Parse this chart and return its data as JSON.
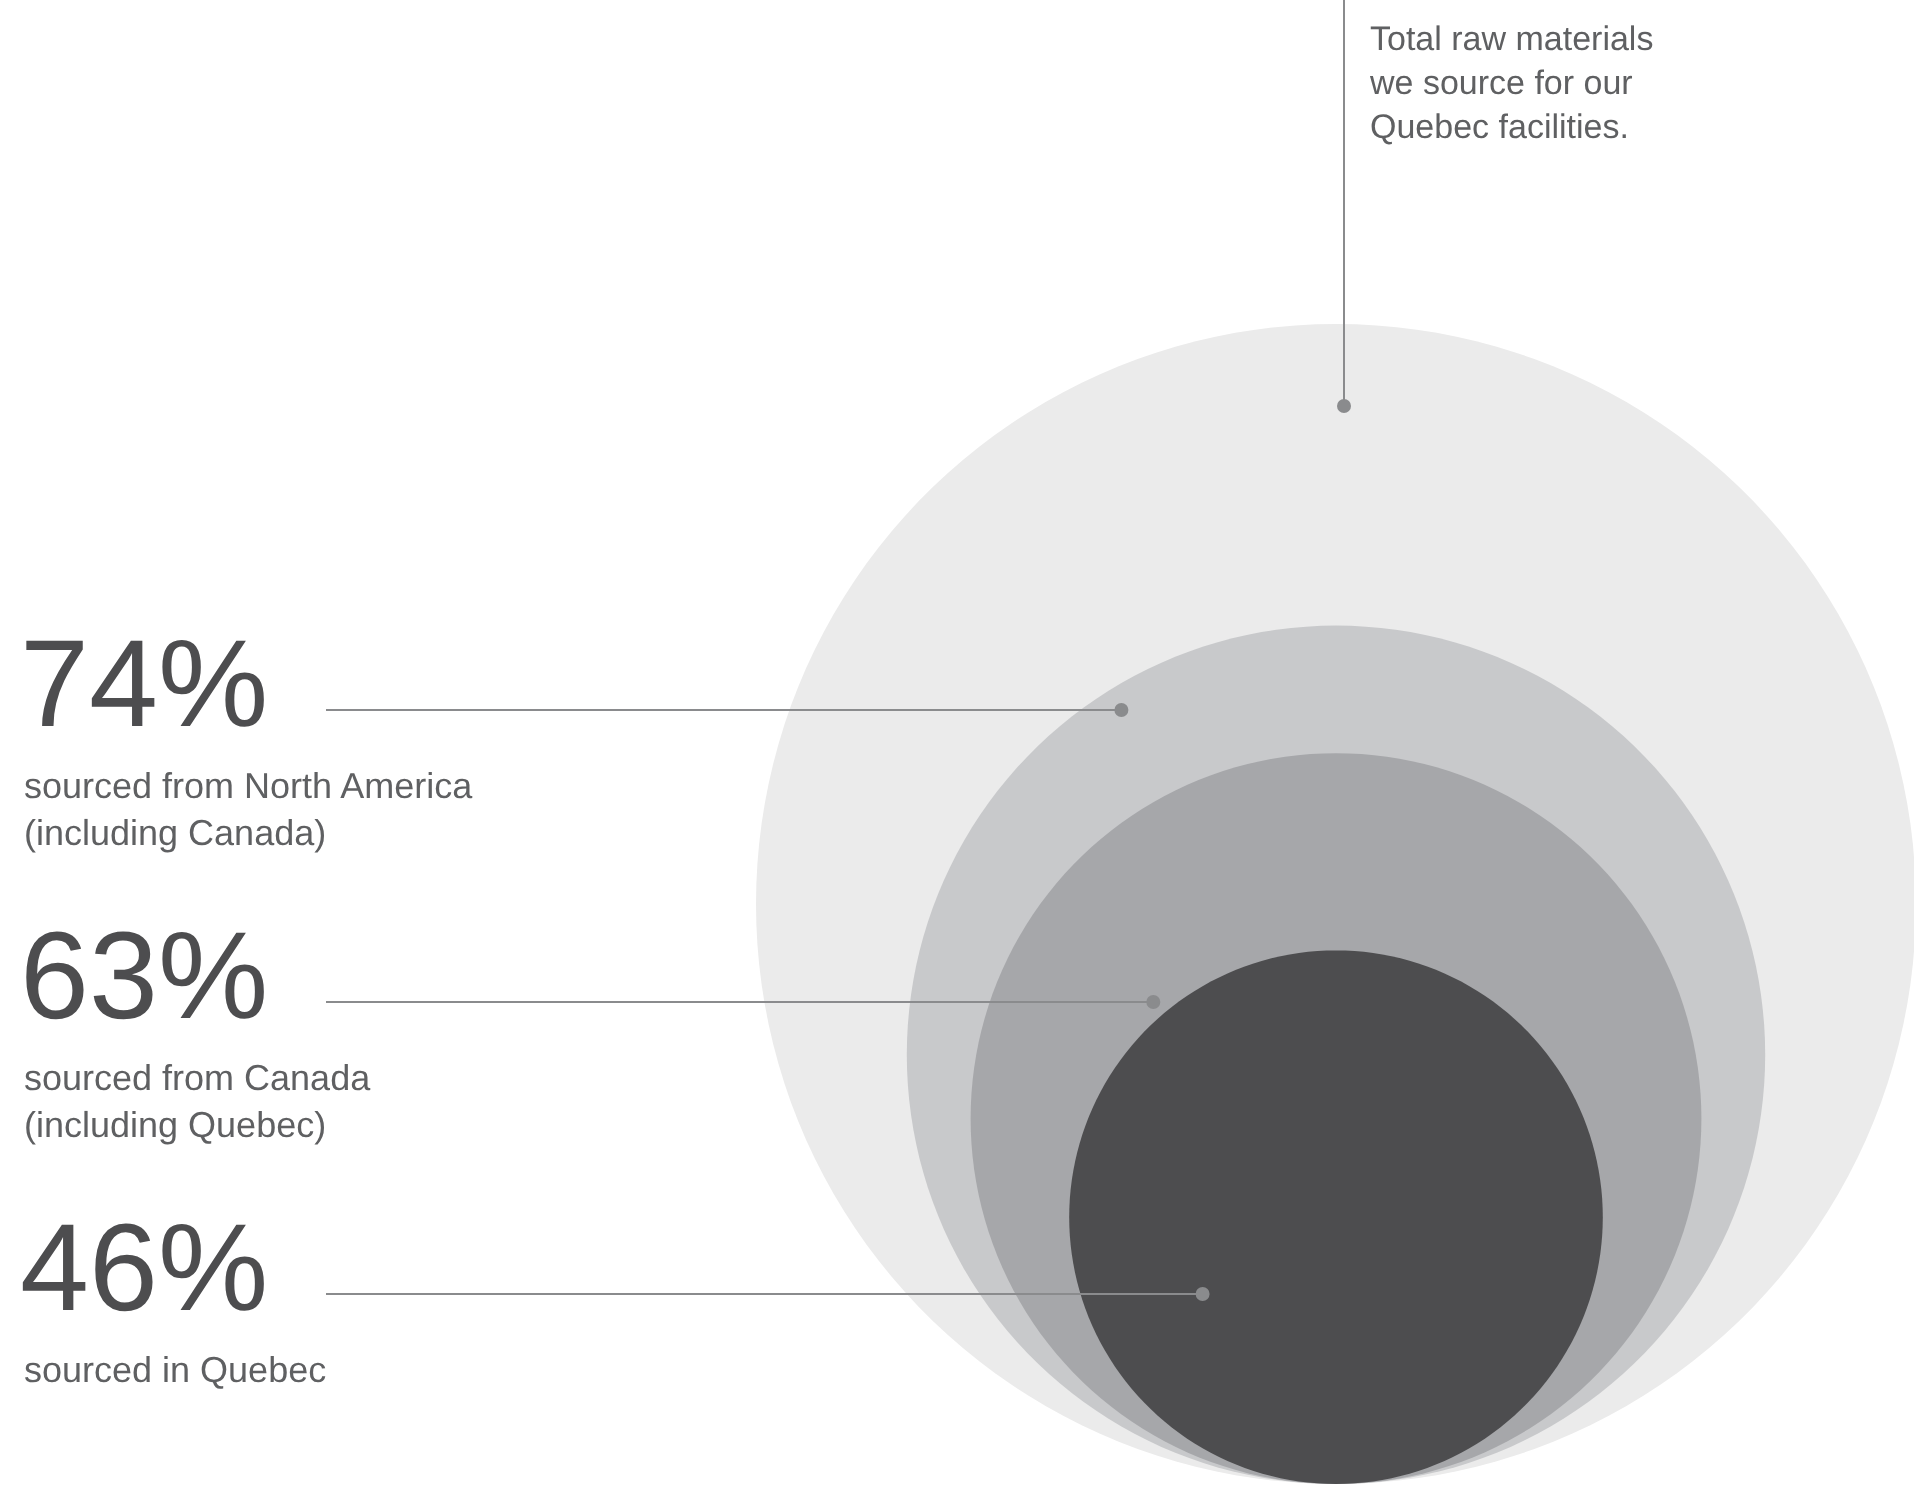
{
  "chart_data": {
    "type": "other",
    "categories": [
      "Total raw materials\nwe source for our\nQuebec facilities.",
      "sourced from North America\n(including Canada)",
      "sourced from Canada\n(including Quebec)",
      "sourced in Quebec"
    ],
    "values": [
      null,
      74,
      63,
      46
    ],
    "value_labels": [
      null,
      "74%",
      "63%",
      "46%"
    ],
    "colors": [
      "#ebebeb",
      "#c8c9cb",
      "#a6a7aa",
      "#4d4d4f"
    ]
  }
}
